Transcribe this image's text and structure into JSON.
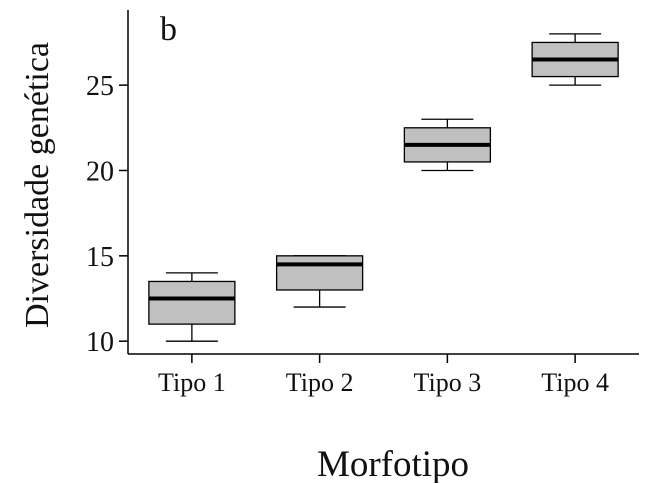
{
  "chart_data": {
    "type": "box",
    "panel_label": "b",
    "xlabel": "Morfotipo",
    "ylabel": "Diversidade genética",
    "categories": [
      "Tipo 1",
      "Tipo 2",
      "Tipo 3",
      "Tipo 4"
    ],
    "boxes": [
      {
        "category": "Tipo 1",
        "min": 10.0,
        "q1": 11.0,
        "median": 12.5,
        "q3": 13.5,
        "max": 14.0
      },
      {
        "category": "Tipo 2",
        "min": 12.0,
        "q1": 13.0,
        "median": 14.5,
        "q3": 15.0,
        "max": 15.0
      },
      {
        "category": "Tipo 3",
        "min": 20.0,
        "q1": 20.5,
        "median": 21.5,
        "q3": 22.5,
        "max": 23.0
      },
      {
        "category": "Tipo 4",
        "min": 25.0,
        "q1": 25.5,
        "median": 26.5,
        "q3": 27.5,
        "max": 28.0
      }
    ],
    "ylim": [
      9.25,
      29.4
    ],
    "yticks": [
      10,
      15,
      20,
      25
    ],
    "box_color": "#c0c0c0",
    "line_color": "#000000",
    "grid": false,
    "legend": "none"
  }
}
